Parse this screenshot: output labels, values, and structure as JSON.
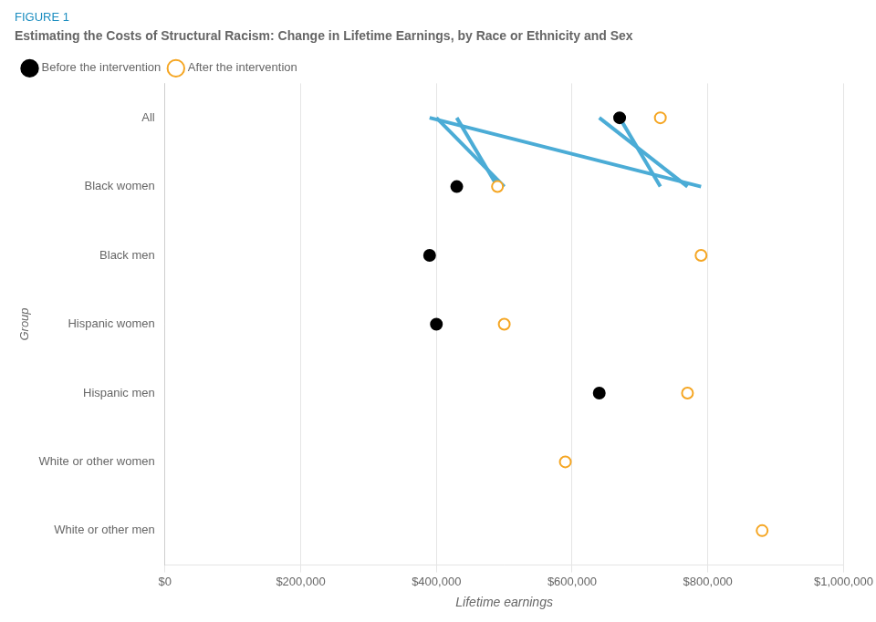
{
  "chart_data": {
    "type": "dumbbell",
    "title": "Estimating the Costs of Structural Racism: Change in Lifetime Earnings, by Race or Ethnicity and Sex",
    "annotations": [
      {
        "text": "FIGURE 1",
        "color": "#1B8DC0"
      }
    ],
    "xlabel": "Lifetime earnings",
    "ylabel": "Group",
    "categories": [
      "All",
      "Black women",
      "Black men",
      "Hispanic women",
      "Hispanic men",
      "White or other women",
      "White or other men"
    ],
    "series": [
      {
        "name": "Before the intervention",
        "color": "#000000",
        "marker": "circle",
        "values": [
          670000,
          430000,
          390000,
          400000,
          640000,
          null,
          null
        ]
      },
      {
        "name": "After the intervention",
        "color": "#F5A623",
        "marker": "ring",
        "values": [
          730000,
          490000,
          790000,
          500000,
          770000,
          590000,
          880000
        ]
      }
    ],
    "color": "#4BACD6",
    "orientation": "horizontal",
    "xlim": [
      0,
      1000000
    ],
    "xticks": [
      {
        "value": 0,
        "label": "$0"
      },
      {
        "value": 200000,
        "label": "$200,000"
      },
      {
        "value": 400000,
        "label": "$400,000"
      },
      {
        "value": 600000,
        "label": "$600,000"
      },
      {
        "value": 800000,
        "label": "$800,000"
      },
      {
        "value": 1000000,
        "label": "$1,000,000"
      }
    ],
    "grid": true,
    "legend": "top"
  }
}
